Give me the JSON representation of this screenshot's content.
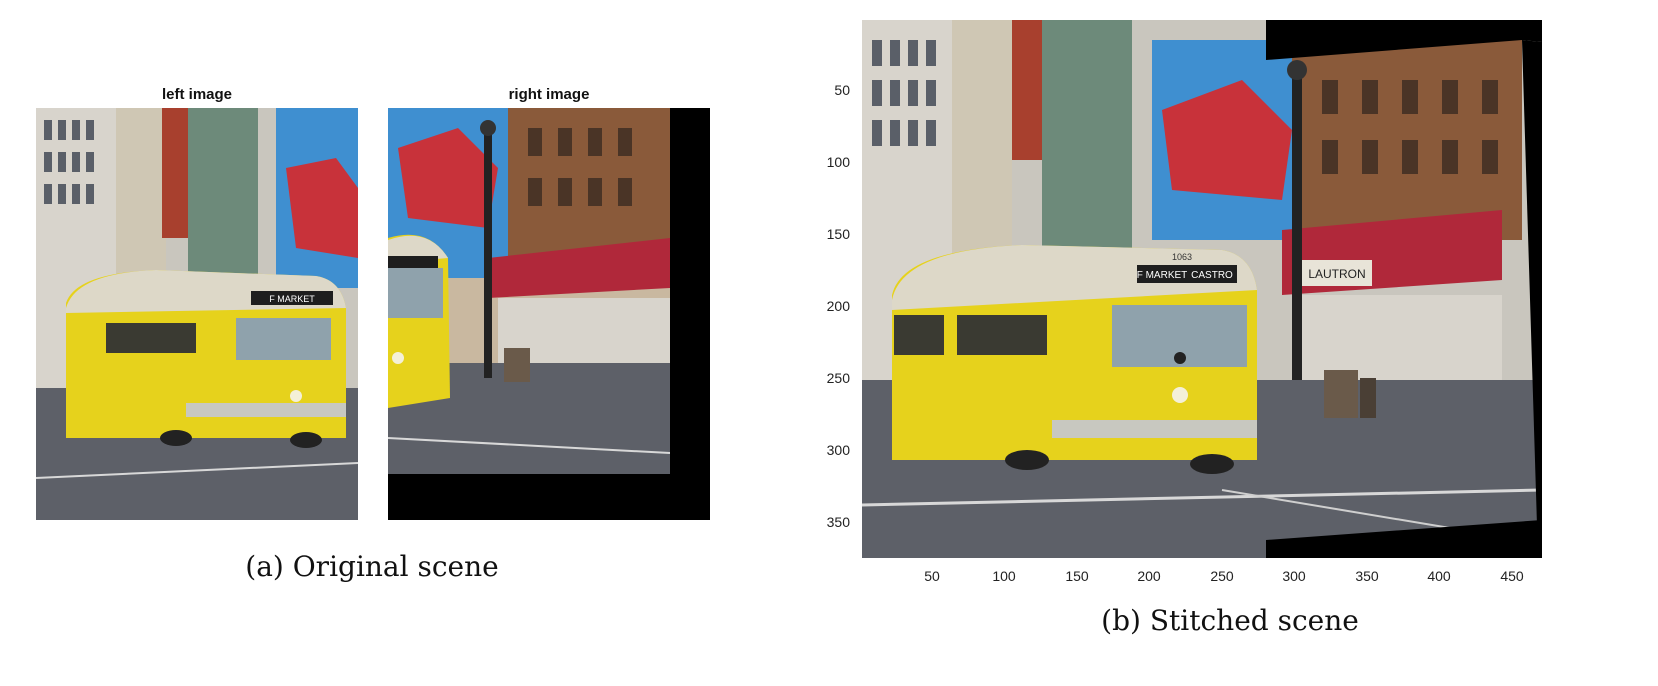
{
  "figure_a": {
    "left_title": "left image",
    "right_title": "right image",
    "caption": "(a) Original scene"
  },
  "figure_b": {
    "caption": "(b) Stitched scene",
    "y_ticks": [
      "50",
      "100",
      "150",
      "200",
      "250",
      "300",
      "350"
    ],
    "x_ticks": [
      "50",
      "100",
      "150",
      "200",
      "250",
      "300",
      "350",
      "400",
      "450"
    ]
  },
  "scene_text": {
    "tram_sign_left": "F MARKET",
    "tram_sign_right": "CASTRO",
    "tram_number": "1063",
    "storefront": "LAUTRON"
  },
  "colors": {
    "tram_yellow": "#e6d21c",
    "tram_roof": "#ddd8c8",
    "billboard_blue": "#3f8fd0",
    "billboard_red": "#c8323a",
    "awning_red": "#b0283a",
    "street": "#5d6068",
    "background_black": "#000000"
  }
}
